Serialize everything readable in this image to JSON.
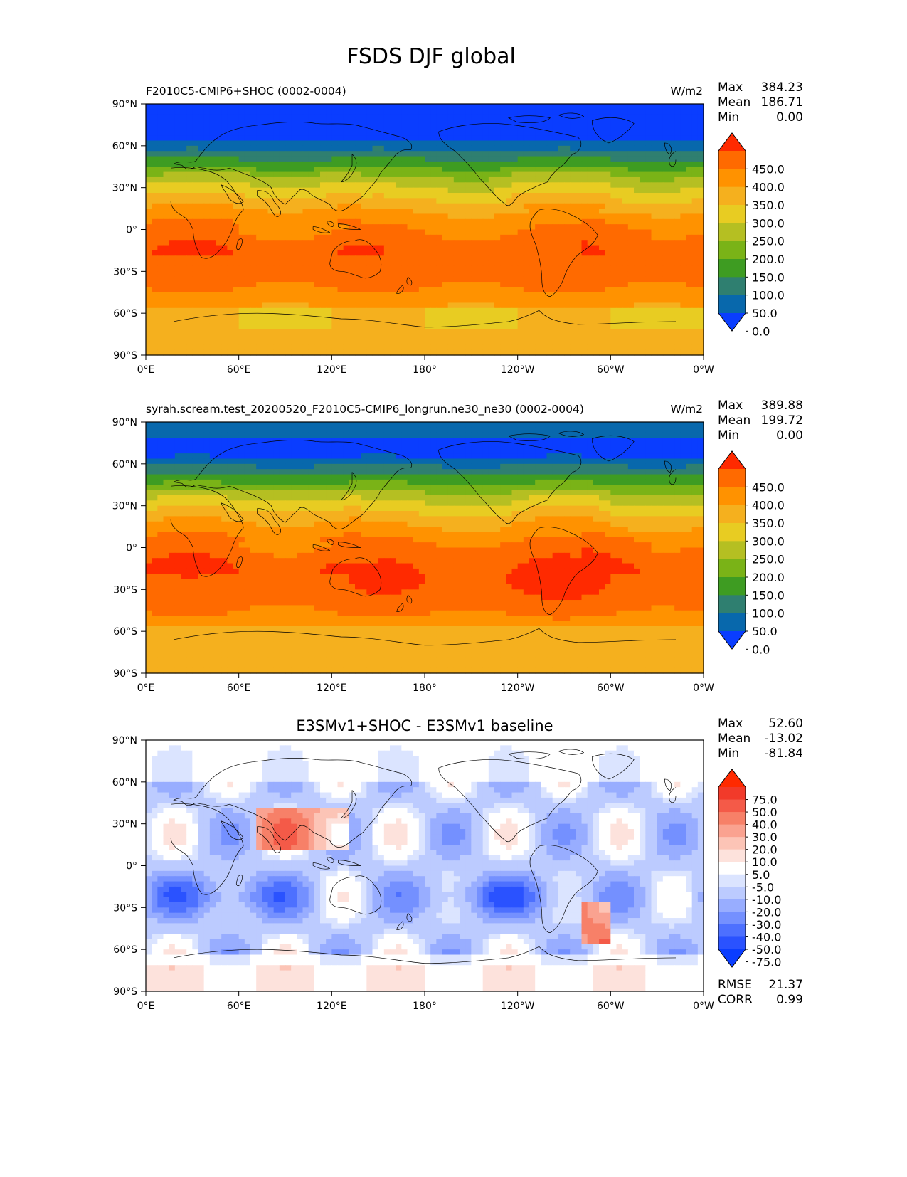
{
  "title": "FSDS DJF global",
  "lat_ticks": [
    "90°N",
    "60°N",
    "30°N",
    "0°",
    "30°S",
    "60°S",
    "90°S"
  ],
  "lon_ticks": [
    "0°E",
    "60°E",
    "120°E",
    "180°",
    "120°W",
    "60°W",
    "0°W"
  ],
  "panels": [
    {
      "left_title": "F2010C5-CMIP6+SHOC (0002-0004)",
      "center_title": "",
      "units": "W/m2",
      "stats": {
        "max_label": "Max",
        "max": "384.23",
        "mean_label": "Mean",
        "mean": "186.71",
        "min_label": "Min",
        "min": "0.00"
      },
      "colorbar": {
        "labels": [
          "450.0",
          "400.0",
          "350.0",
          "300.0",
          "250.0",
          "200.0",
          "150.0",
          "100.0",
          "50.0",
          "0.0"
        ],
        "colors": [
          "#ff2a00",
          "#ff6a00",
          "#ff9200",
          "#f5b01e",
          "#e8cc22",
          "#b5bf22",
          "#7ab317",
          "#3e9c22",
          "#2f7f70",
          "#0868ac",
          "#0a3dff"
        ]
      },
      "field": "model1"
    },
    {
      "left_title": "syrah.scream.test_20200520_F2010C5-CMIP6_longrun.ne30_ne30 (0002-0004)",
      "center_title": "",
      "units": "W/m2",
      "stats": {
        "max_label": "Max",
        "max": "389.88",
        "mean_label": "Mean",
        "mean": "199.72",
        "min_label": "Min",
        "min": "0.00"
      },
      "colorbar": {
        "labels": [
          "450.0",
          "400.0",
          "350.0",
          "300.0",
          "250.0",
          "200.0",
          "150.0",
          "100.0",
          "50.0",
          "0.0"
        ],
        "colors": [
          "#ff2a00",
          "#ff6a00",
          "#ff9200",
          "#f5b01e",
          "#e8cc22",
          "#b5bf22",
          "#7ab317",
          "#3e9c22",
          "#2f7f70",
          "#0868ac",
          "#0a3dff"
        ]
      },
      "field": "model2"
    },
    {
      "left_title": "",
      "center_title": "E3SMv1+SHOC - E3SMv1 baseline",
      "units": "",
      "stats": {
        "max_label": "Max",
        "max": "52.60",
        "mean_label": "Mean",
        "mean": "-13.02",
        "min_label": "Min",
        "min": "-81.84"
      },
      "colorbar": {
        "labels": [
          "75.0",
          "50.0",
          "40.0",
          "30.0",
          "20.0",
          "10.0",
          "5.0",
          "-5.0",
          "-10.0",
          "-20.0",
          "-30.0",
          "-40.0",
          "-50.0",
          "-75.0"
        ],
        "colors": [
          "#ff2a00",
          "#f23a2a",
          "#f45a48",
          "#f78068",
          "#faa290",
          "#fcc4b6",
          "#fde2dc",
          "#ffffff",
          "#dbe4ff",
          "#bccbff",
          "#98adff",
          "#7490ff",
          "#4d70ff",
          "#2a52ff",
          "#0a3dff"
        ]
      },
      "extra_stats": {
        "rmse_label": "RMSE",
        "rmse": "21.37",
        "corr_label": "CORR",
        "corr": "0.99"
      },
      "field": "diff"
    }
  ]
}
